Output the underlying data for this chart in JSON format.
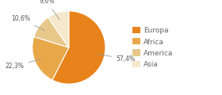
{
  "labels": [
    "Europa",
    "Africa",
    "America",
    "Asia"
  ],
  "values": [
    57.4,
    22.3,
    10.6,
    9.6
  ],
  "colors": [
    "#E8821A",
    "#E8A84A",
    "#E8C88A",
    "#F5E8CC"
  ],
  "label_texts": [
    "57,4%",
    "22,3%",
    "10,6%",
    "9,6%"
  ],
  "startangle": 90,
  "figsize": [
    2.8,
    1.2
  ],
  "dpi": 100
}
